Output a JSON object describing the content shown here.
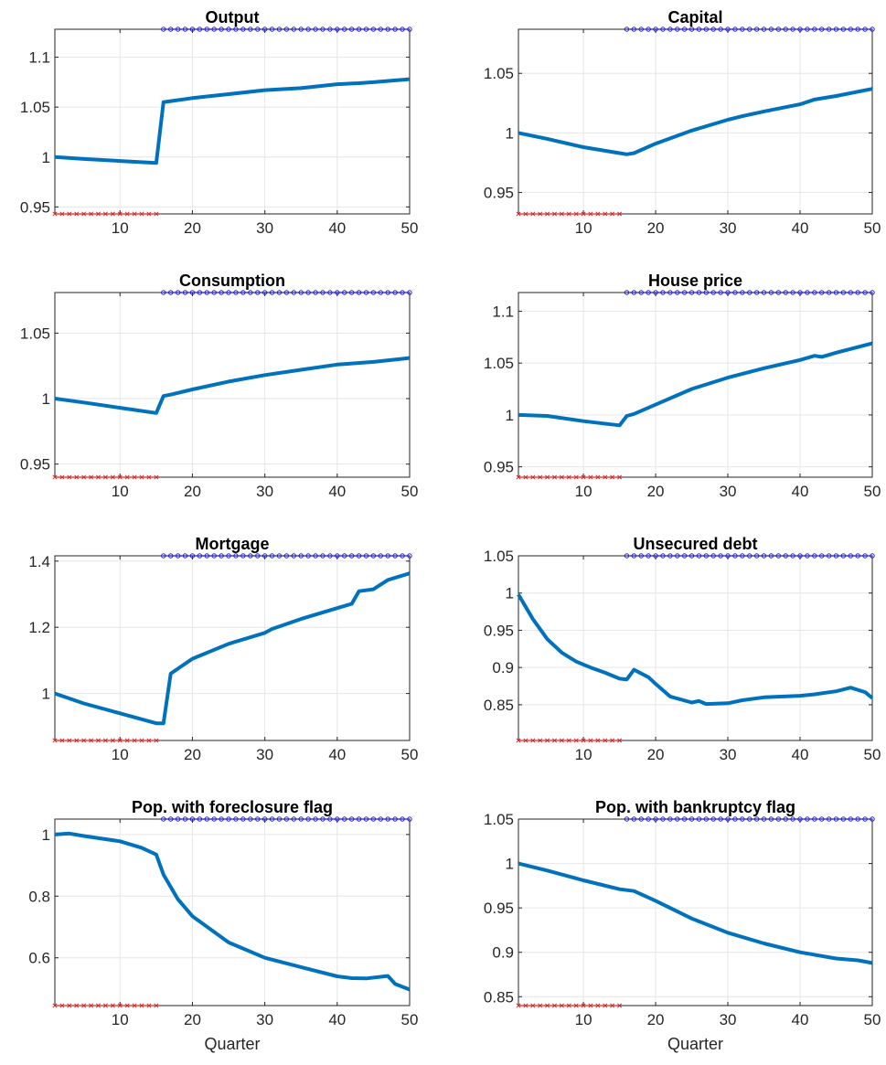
{
  "chart_data": [
    {
      "type": "line",
      "title": "Output",
      "xlabel": "",
      "xlim": [
        1,
        50
      ],
      "ylim": [
        0.943,
        1.128
      ],
      "xticks": [
        10,
        20,
        30,
        40,
        50
      ],
      "yticks": [
        0.95,
        1,
        1.05,
        1.1
      ],
      "ytick_labels": [
        "0.95",
        "1",
        "1.05",
        "1.1"
      ],
      "grid": true,
      "series": [
        {
          "points": [
            [
              1,
              1.0
            ],
            [
              5,
              0.998
            ],
            [
              10,
              0.996
            ],
            [
              15,
              0.994
            ],
            [
              16,
              1.055
            ],
            [
              17,
              1.056
            ],
            [
              20,
              1.059
            ],
            [
              25,
              1.063
            ],
            [
              30,
              1.067
            ],
            [
              35,
              1.069
            ],
            [
              40,
              1.073
            ],
            [
              43,
              1.074
            ],
            [
              45,
              1.075
            ],
            [
              50,
              1.078
            ]
          ]
        }
      ],
      "markers": {
        "regime_1_quarters": [
          1,
          15
        ],
        "regime_2_quarters": [
          16,
          50
        ]
      }
    },
    {
      "type": "line",
      "title": "Capital",
      "xlabel": "",
      "xlim": [
        1,
        50
      ],
      "ylim": [
        0.932,
        1.087
      ],
      "xticks": [
        10,
        20,
        30,
        40,
        50
      ],
      "yticks": [
        0.95,
        1,
        1.05
      ],
      "ytick_labels": [
        "0.95",
        "1",
        "1.05"
      ],
      "grid": true,
      "series": [
        {
          "points": [
            [
              1,
              1.0
            ],
            [
              5,
              0.995
            ],
            [
              10,
              0.988
            ],
            [
              15,
              0.983
            ],
            [
              16,
              0.982
            ],
            [
              17,
              0.983
            ],
            [
              20,
              0.991
            ],
            [
              25,
              1.002
            ],
            [
              30,
              1.011
            ],
            [
              32,
              1.014
            ],
            [
              35,
              1.018
            ],
            [
              40,
              1.024
            ],
            [
              42,
              1.028
            ],
            [
              45,
              1.031
            ],
            [
              50,
              1.037
            ]
          ]
        }
      ],
      "markers": {
        "regime_1_quarters": [
          1,
          15
        ],
        "regime_2_quarters": [
          16,
          50
        ]
      }
    },
    {
      "type": "line",
      "title": "Consumption",
      "xlabel": "",
      "xlim": [
        1,
        50
      ],
      "ylim": [
        0.94,
        1.081
      ],
      "xticks": [
        10,
        20,
        30,
        40,
        50
      ],
      "yticks": [
        0.95,
        1,
        1.05
      ],
      "ytick_labels": [
        "0.95",
        "1",
        "1.05"
      ],
      "grid": true,
      "series": [
        {
          "points": [
            [
              1,
              1.0
            ],
            [
              5,
              0.997
            ],
            [
              10,
              0.993
            ],
            [
              15,
              0.989
            ],
            [
              16,
              1.002
            ],
            [
              17,
              1.003
            ],
            [
              20,
              1.007
            ],
            [
              25,
              1.013
            ],
            [
              30,
              1.018
            ],
            [
              35,
              1.022
            ],
            [
              40,
              1.026
            ],
            [
              45,
              1.028
            ],
            [
              50,
              1.031
            ]
          ]
        }
      ],
      "markers": {
        "regime_1_quarters": [
          1,
          15
        ],
        "regime_2_quarters": [
          16,
          50
        ]
      }
    },
    {
      "type": "line",
      "title": "House price",
      "xlabel": "",
      "xlim": [
        1,
        50
      ],
      "ylim": [
        0.94,
        1.118
      ],
      "xticks": [
        10,
        20,
        30,
        40,
        50
      ],
      "yticks": [
        0.95,
        1,
        1.05,
        1.1
      ],
      "ytick_labels": [
        "0.95",
        "1",
        "1.05",
        "1.1"
      ],
      "grid": true,
      "series": [
        {
          "points": [
            [
              1,
              1.0
            ],
            [
              5,
              0.999
            ],
            [
              10,
              0.994
            ],
            [
              15,
              0.99
            ],
            [
              16,
              0.999
            ],
            [
              17,
              1.001
            ],
            [
              20,
              1.01
            ],
            [
              25,
              1.025
            ],
            [
              30,
              1.036
            ],
            [
              35,
              1.045
            ],
            [
              40,
              1.053
            ],
            [
              42,
              1.057
            ],
            [
              43,
              1.056
            ],
            [
              45,
              1.06
            ],
            [
              50,
              1.069
            ]
          ]
        }
      ],
      "markers": {
        "regime_1_quarters": [
          1,
          15
        ],
        "regime_2_quarters": [
          16,
          50
        ]
      }
    },
    {
      "type": "line",
      "title": "Mortgage",
      "xlabel": "",
      "xlim": [
        1,
        50
      ],
      "ylim": [
        0.858,
        1.416
      ],
      "xticks": [
        10,
        20,
        30,
        40,
        50
      ],
      "yticks": [
        1,
        1.2,
        1.4
      ],
      "ytick_labels": [
        "1",
        "1.2",
        "1.4"
      ],
      "grid": true,
      "series": [
        {
          "points": [
            [
              1,
              1.0
            ],
            [
              5,
              0.97
            ],
            [
              10,
              0.94
            ],
            [
              15,
              0.91
            ],
            [
              16,
              0.91
            ],
            [
              17,
              1.06
            ],
            [
              20,
              1.105
            ],
            [
              25,
              1.15
            ],
            [
              30,
              1.183
            ],
            [
              31,
              1.195
            ],
            [
              35,
              1.225
            ],
            [
              38,
              1.245
            ],
            [
              40,
              1.258
            ],
            [
              42,
              1.271
            ],
            [
              43,
              1.309
            ],
            [
              45,
              1.315
            ],
            [
              47,
              1.343
            ],
            [
              50,
              1.363
            ]
          ]
        }
      ],
      "markers": {
        "regime_1_quarters": [
          1,
          15
        ],
        "regime_2_quarters": [
          16,
          50
        ]
      }
    },
    {
      "type": "line",
      "title": "Unsecured debt",
      "xlabel": "",
      "xlim": [
        1,
        50
      ],
      "ylim": [
        0.802,
        1.05
      ],
      "xticks": [
        10,
        20,
        30,
        40,
        50
      ],
      "yticks": [
        0.85,
        0.9,
        0.95,
        1,
        1.05
      ],
      "ytick_labels": [
        "0.85",
        "0.9",
        "0.95",
        "1",
        "1.05"
      ],
      "grid": true,
      "series": [
        {
          "points": [
            [
              1,
              0.998
            ],
            [
              3,
              0.965
            ],
            [
              5,
              0.938
            ],
            [
              7,
              0.92
            ],
            [
              9,
              0.908
            ],
            [
              11,
              0.9
            ],
            [
              13,
              0.893
            ],
            [
              15,
              0.885
            ],
            [
              16,
              0.884
            ],
            [
              17,
              0.897
            ],
            [
              19,
              0.887
            ],
            [
              20,
              0.878
            ],
            [
              22,
              0.861
            ],
            [
              25,
              0.853
            ],
            [
              26,
              0.855
            ],
            [
              27,
              0.851
            ],
            [
              30,
              0.852
            ],
            [
              32,
              0.856
            ],
            [
              35,
              0.86
            ],
            [
              40,
              0.862
            ],
            [
              42,
              0.864
            ],
            [
              45,
              0.868
            ],
            [
              47,
              0.873
            ],
            [
              49,
              0.867
            ],
            [
              50,
              0.859
            ]
          ]
        }
      ],
      "markers": {
        "regime_1_quarters": [
          1,
          15
        ],
        "regime_2_quarters": [
          16,
          50
        ]
      }
    },
    {
      "type": "line",
      "title": "Pop. with foreclosure flag",
      "xlabel": "Quarter",
      "xlim": [
        1,
        50
      ],
      "ylim": [
        0.445,
        1.05
      ],
      "xticks": [
        10,
        20,
        30,
        40,
        50
      ],
      "yticks": [
        0.6,
        0.8,
        1
      ],
      "ytick_labels": [
        "0.6",
        "0.8",
        "1"
      ],
      "grid": true,
      "series": [
        {
          "points": [
            [
              1,
              1.0
            ],
            [
              3,
              1.003
            ],
            [
              5,
              0.995
            ],
            [
              10,
              0.978
            ],
            [
              13,
              0.957
            ],
            [
              15,
              0.935
            ],
            [
              16,
              0.87
            ],
            [
              18,
              0.79
            ],
            [
              20,
              0.735
            ],
            [
              25,
              0.65
            ],
            [
              30,
              0.6
            ],
            [
              35,
              0.57
            ],
            [
              40,
              0.54
            ],
            [
              42,
              0.534
            ],
            [
              44,
              0.533
            ],
            [
              47,
              0.541
            ],
            [
              48,
              0.515
            ],
            [
              50,
              0.497
            ]
          ]
        }
      ],
      "markers": {
        "regime_1_quarters": [
          1,
          15
        ],
        "regime_2_quarters": [
          16,
          50
        ]
      }
    },
    {
      "type": "line",
      "title": "Pop. with bankruptcy flag",
      "xlabel": "Quarter",
      "xlim": [
        1,
        50
      ],
      "ylim": [
        0.84,
        1.05
      ],
      "xticks": [
        10,
        20,
        30,
        40,
        50
      ],
      "yticks": [
        0.85,
        0.9,
        0.95,
        1,
        1.05
      ],
      "ytick_labels": [
        "0.85",
        "0.9",
        "0.95",
        "1",
        "1.05"
      ],
      "grid": true,
      "series": [
        {
          "points": [
            [
              1,
              1.0
            ],
            [
              5,
              0.992
            ],
            [
              10,
              0.981
            ],
            [
              15,
              0.971
            ],
            [
              17,
              0.969
            ],
            [
              20,
              0.958
            ],
            [
              25,
              0.938
            ],
            [
              30,
              0.922
            ],
            [
              35,
              0.91
            ],
            [
              40,
              0.9
            ],
            [
              45,
              0.893
            ],
            [
              48,
              0.891
            ],
            [
              50,
              0.888
            ]
          ]
        }
      ],
      "markers": {
        "regime_1_quarters": [
          1,
          15
        ],
        "regime_2_quarters": [
          16,
          50
        ]
      }
    }
  ],
  "colors": {
    "line": "#0072BD",
    "regime_1_marker": "#D62728",
    "regime_2_marker": "#1F1FD0",
    "grid": "#E6E6E6",
    "axis": "#262626"
  }
}
